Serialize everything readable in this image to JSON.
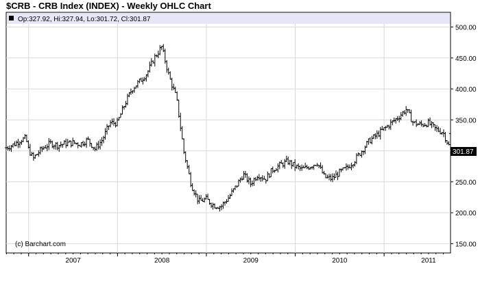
{
  "title": "$CRB - CRB Index (INDEX) - Weekly OHLC Chart",
  "info": "Op:327.92, Hi:327.94, Lo:301.72, Cl:301.87",
  "credit": "(c) Barchart.com",
  "last_label": "301.87",
  "colors": {
    "grid": "#d8d8d8",
    "info_bar": "#e6e6f7",
    "bar": "#000000",
    "last_box": "#000000"
  },
  "chart_data": {
    "type": "ohlc",
    "title": "$CRB - CRB Index (INDEX) - Weekly OHLC Chart",
    "xlabel": "",
    "ylabel": "",
    "x_tick_labels": [
      "2007",
      "2008",
      "2009",
      "2010",
      "2011"
    ],
    "y_tick_values": [
      150,
      200,
      250,
      300,
      350,
      400,
      450,
      500
    ],
    "y_tick_labels": [
      "150.00",
      "200.00",
      "250.00",
      "300.00",
      "350.00",
      "400.00",
      "450.00",
      "500.00"
    ],
    "ylim": [
      135,
      505
    ],
    "x_range": [
      "2006-10",
      "2011-10"
    ],
    "grid": true,
    "last": {
      "open": 327.92,
      "high": 327.94,
      "low": 301.72,
      "close": 301.87
    },
    "series": [
      {
        "name": "$CRB",
        "points": [
          [
            "2006-10",
            305
          ],
          [
            "2006-11",
            310
          ],
          [
            "2006-12",
            318
          ],
          [
            "2006-12-20",
            320
          ],
          [
            "2007-01",
            303
          ],
          [
            "2007-01-20",
            287
          ],
          [
            "2007-02",
            293
          ],
          [
            "2007-03",
            305
          ],
          [
            "2007-04",
            312
          ],
          [
            "2007-05",
            309
          ],
          [
            "2007-06",
            312
          ],
          [
            "2007-07",
            313
          ],
          [
            "2007-08",
            311
          ],
          [
            "2007-09",
            318
          ],
          [
            "2007-10",
            303
          ],
          [
            "2007-11",
            318
          ],
          [
            "2007-12",
            345
          ],
          [
            "2008-01",
            345
          ],
          [
            "2008-02",
            375
          ],
          [
            "2008-03",
            400
          ],
          [
            "2008-04",
            412
          ],
          [
            "2008-05",
            425
          ],
          [
            "2008-06",
            450
          ],
          [
            "2008-07",
            468
          ],
          [
            "2008-08",
            420
          ],
          [
            "2008-09",
            385
          ],
          [
            "2008-10",
            298
          ],
          [
            "2008-11",
            245
          ],
          [
            "2008-12",
            218
          ],
          [
            "2009-01",
            222
          ],
          [
            "2009-02",
            212
          ],
          [
            "2009-03",
            210
          ],
          [
            "2009-04",
            224
          ],
          [
            "2009-05",
            242
          ],
          [
            "2009-06",
            262
          ],
          [
            "2009-07",
            247
          ],
          [
            "2009-08",
            262
          ],
          [
            "2009-09",
            254
          ],
          [
            "2009-10",
            270
          ],
          [
            "2009-11",
            277
          ],
          [
            "2009-12",
            283
          ],
          [
            "2010-01",
            275
          ],
          [
            "2010-02",
            270
          ],
          [
            "2010-03",
            275
          ],
          [
            "2010-04",
            281
          ],
          [
            "2010-05",
            257
          ],
          [
            "2010-06",
            255
          ],
          [
            "2010-07",
            265
          ],
          [
            "2010-08",
            272
          ],
          [
            "2010-09",
            284
          ],
          [
            "2010-10",
            300
          ],
          [
            "2010-11",
            316
          ],
          [
            "2010-12",
            325
          ],
          [
            "2011-01",
            335
          ],
          [
            "2011-02",
            345
          ],
          [
            "2011-03",
            355
          ],
          [
            "2011-04",
            367
          ],
          [
            "2011-05",
            345
          ],
          [
            "2011-06",
            342
          ],
          [
            "2011-07",
            345
          ],
          [
            "2011-08",
            335
          ],
          [
            "2011-09",
            330
          ],
          [
            "2011-10",
            302
          ]
        ]
      }
    ]
  }
}
